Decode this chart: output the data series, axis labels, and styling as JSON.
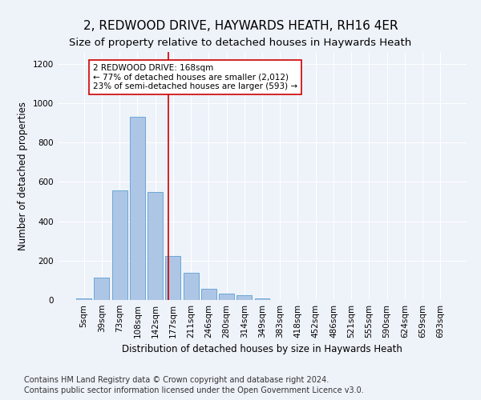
{
  "title": "2, REDWOOD DRIVE, HAYWARDS HEATH, RH16 4ER",
  "subtitle": "Size of property relative to detached houses in Haywards Heath",
  "xlabel": "Distribution of detached houses by size in Haywards Heath",
  "ylabel": "Number of detached properties",
  "categories": [
    "5sqm",
    "39sqm",
    "73sqm",
    "108sqm",
    "142sqm",
    "177sqm",
    "211sqm",
    "246sqm",
    "280sqm",
    "314sqm",
    "349sqm",
    "383sqm",
    "418sqm",
    "452sqm",
    "486sqm",
    "521sqm",
    "555sqm",
    "590sqm",
    "624sqm",
    "659sqm",
    "693sqm"
  ],
  "values": [
    8,
    113,
    555,
    930,
    550,
    225,
    140,
    58,
    33,
    23,
    10,
    0,
    0,
    0,
    0,
    0,
    0,
    0,
    0,
    0,
    0
  ],
  "bar_color": "#adc6e5",
  "bar_edge_color": "#5a9fd4",
  "ylim": [
    0,
    1260
  ],
  "yticks": [
    0,
    200,
    400,
    600,
    800,
    1000,
    1200
  ],
  "annotation_box_text_line1": "2 REDWOOD DRIVE: 168sqm",
  "annotation_box_text_line2": "← 77% of detached houses are smaller (2,012)",
  "annotation_box_text_line3": "23% of semi-detached houses are larger (593) →",
  "annotation_box_color": "#ffffff",
  "annotation_box_edge_color": "#cc0000",
  "vline_color": "#cc0000",
  "footer1": "Contains HM Land Registry data © Crown copyright and database right 2024.",
  "footer2": "Contains public sector information licensed under the Open Government Licence v3.0.",
  "background_color": "#eef2f9",
  "grid_color": "#ffffff",
  "title_fontsize": 11,
  "xlabel_fontsize": 8.5,
  "ylabel_fontsize": 8.5,
  "tick_fontsize": 7.5,
  "annotation_fontsize": 7.5,
  "footer_fontsize": 7
}
